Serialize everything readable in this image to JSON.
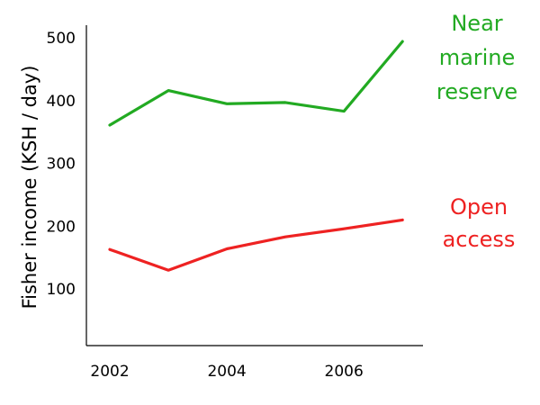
{
  "chart_data": {
    "type": "line",
    "title": "",
    "xlabel": "",
    "ylabel": "Fisher income (KSH / day)",
    "x": [
      2002,
      2003,
      2004,
      2005,
      2006,
      2007
    ],
    "xticks": [
      2002,
      2004,
      2006
    ],
    "yticks": [
      100,
      200,
      300,
      400,
      500
    ],
    "xlim": [
      2001.6,
      2007.35
    ],
    "ylim": [
      10,
      520
    ],
    "grid": false,
    "series": [
      {
        "name": [
          "Near",
          "marine",
          "reserve"
        ],
        "color": "#22aa22",
        "values": [
          361,
          416,
          395,
          397,
          383,
          494
        ]
      },
      {
        "name": [
          "Open",
          "access"
        ],
        "color": "#ee2222",
        "values": [
          163,
          130,
          164,
          183,
          196,
          210
        ]
      }
    ]
  }
}
